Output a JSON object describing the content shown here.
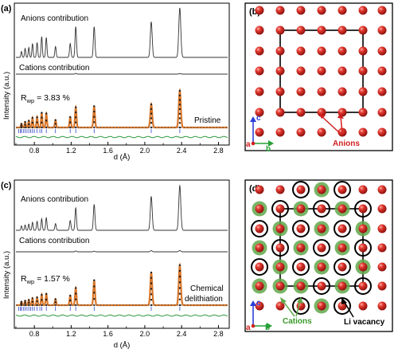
{
  "panels": {
    "a": {
      "label": "(a)",
      "ylabel": "Intensity (a.u.)",
      "xlabel": "d (Å)",
      "xticks": [
        "0.8",
        "1.2",
        "1.6",
        "2.0",
        "2.4",
        "2.8"
      ],
      "curve1_label": "Anions contribution",
      "curve2_label": "Cations contribution",
      "rwp_prefix": "R",
      "rwp_sub": "wp",
      "rwp_value": " = 3.83 %",
      "sample_label": "Pristine"
    },
    "c": {
      "label": "(c)",
      "ylabel": "Intensity (a.u.)",
      "xlabel": "d (Å)",
      "xticks": [
        "0.8",
        "1.2",
        "1.6",
        "2.0",
        "2.4",
        "2.8"
      ],
      "curve1_label": "Anions contribution",
      "curve2_label": "Cations contribution",
      "rwp_prefix": "R",
      "rwp_sub": "wp",
      "rwp_value": " = 1.57 %",
      "sample_label_line1": "Chemical",
      "sample_label_line2": "delithiation"
    },
    "b": {
      "label": "(b)",
      "axis_c": "c",
      "axis_a": "a",
      "axis_b": "b",
      "annotation": "Anions"
    },
    "d": {
      "label": "(d)",
      "axis_c": "c",
      "axis_a": "a",
      "axis_b": "b",
      "annotation_cations": "Cations",
      "annotation_vacancy": "Li vacancy"
    }
  },
  "colors": {
    "anion_red": "#c8201e",
    "cation_green": "#5fa84a",
    "fit_orange": "#d9772a",
    "obs_black": "#1a1a1a",
    "diff_green": "#2e9a3a",
    "tick_blue": "#3346c4",
    "axis_c_blue": "#2b3fd6",
    "axis_b_green": "#27a137",
    "axis_a_red": "#d02020"
  },
  "chart_data": [
    {
      "type": "line",
      "panel": "a",
      "xlabel": "d (Å)",
      "ylabel": "Intensity (a.u.)",
      "xlim": [
        0.6,
        2.9
      ],
      "series": [
        {
          "name": "Anions contribution",
          "peaks": [
            [
              0.66,
              0.12
            ],
            [
              0.7,
              0.18
            ],
            [
              0.74,
              0.2
            ],
            [
              0.78,
              0.28
            ],
            [
              0.83,
              0.3
            ],
            [
              0.88,
              0.42
            ],
            [
              0.93,
              0.4
            ],
            [
              1.03,
              0.22
            ],
            [
              1.19,
              0.28
            ],
            [
              1.25,
              0.62
            ],
            [
              1.45,
              0.62
            ],
            [
              2.07,
              0.72
            ],
            [
              2.38,
              1.0
            ]
          ]
        },
        {
          "name": "Cations contribution",
          "peaks": [
            [
              1.25,
              0.03
            ],
            [
              2.38,
              0.02
            ]
          ]
        },
        {
          "name": "Observed / fit",
          "peaks": [
            [
              0.66,
              0.1
            ],
            [
              0.7,
              0.15
            ],
            [
              0.74,
              0.18
            ],
            [
              0.78,
              0.26
            ],
            [
              0.83,
              0.28
            ],
            [
              0.88,
              0.4
            ],
            [
              0.93,
              0.38
            ],
            [
              1.03,
              0.2
            ],
            [
              1.19,
              0.28
            ],
            [
              1.25,
              0.55
            ],
            [
              1.45,
              0.58
            ],
            [
              2.07,
              0.63
            ],
            [
              2.38,
              1.0
            ]
          ]
        }
      ],
      "rwp": "3.83 %"
    },
    {
      "type": "line",
      "panel": "c",
      "xlabel": "d (Å)",
      "ylabel": "Intensity (a.u.)",
      "xlim": [
        0.6,
        2.9
      ],
      "series": [
        {
          "name": "Anions contribution",
          "peaks": [
            [
              0.66,
              0.1
            ],
            [
              0.7,
              0.12
            ],
            [
              0.74,
              0.14
            ],
            [
              0.78,
              0.18
            ],
            [
              0.83,
              0.2
            ],
            [
              0.88,
              0.26
            ],
            [
              0.93,
              0.28
            ],
            [
              1.03,
              0.15
            ],
            [
              1.19,
              0.22
            ],
            [
              1.25,
              0.5
            ],
            [
              1.45,
              0.58
            ],
            [
              2.07,
              0.76
            ],
            [
              2.38,
              1.0
            ]
          ]
        },
        {
          "name": "Cations contribution",
          "peaks": [
            [
              1.25,
              0.04
            ],
            [
              1.45,
              0.03
            ],
            [
              2.07,
              0.05
            ],
            [
              2.38,
              0.06
            ]
          ]
        },
        {
          "name": "Observed / fit",
          "peaks": [
            [
              0.66,
              0.08
            ],
            [
              0.7,
              0.1
            ],
            [
              0.74,
              0.12
            ],
            [
              0.78,
              0.16
            ],
            [
              0.83,
              0.18
            ],
            [
              0.88,
              0.24
            ],
            [
              0.93,
              0.26
            ],
            [
              1.03,
              0.14
            ],
            [
              1.19,
              0.22
            ],
            [
              1.25,
              0.4
            ],
            [
              1.45,
              0.58
            ],
            [
              2.07,
              0.76
            ],
            [
              2.38,
              0.93
            ]
          ]
        }
      ],
      "rwp": "1.57 %"
    }
  ]
}
